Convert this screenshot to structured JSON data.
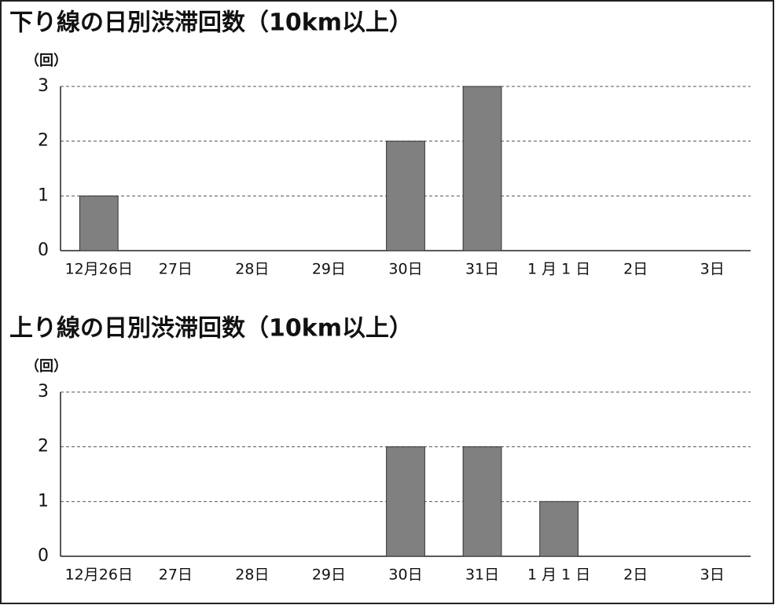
{
  "chart_data": [
    {
      "type": "bar",
      "title": "下り線の日別渋滞回数（10km以上）",
      "y_label": "（回）",
      "categories": [
        "12月26日",
        "27日",
        "28日",
        "29日",
        "30日",
        "31日",
        "1 月 1 日",
        "2日",
        "3日"
      ],
      "values": [
        1,
        0,
        0,
        0,
        2,
        3,
        0,
        0,
        0
      ],
      "color": "#808080",
      "ylim": [
        0,
        3
      ],
      "yticks": [
        0,
        1,
        2,
        3
      ],
      "grid": true
    },
    {
      "type": "bar",
      "title": "上り線の日別渋滞回数（10km以上）",
      "y_label": "（回）",
      "categories": [
        "12月26日",
        "27日",
        "28日",
        "29日",
        "30日",
        "31日",
        "1 月 1 日",
        "2日",
        "3日"
      ],
      "values": [
        0,
        0,
        0,
        0,
        2,
        2,
        1,
        0,
        0
      ],
      "color": "#808080",
      "ylim": [
        0,
        3
      ],
      "yticks": [
        0,
        1,
        2,
        3
      ],
      "grid": true
    }
  ]
}
